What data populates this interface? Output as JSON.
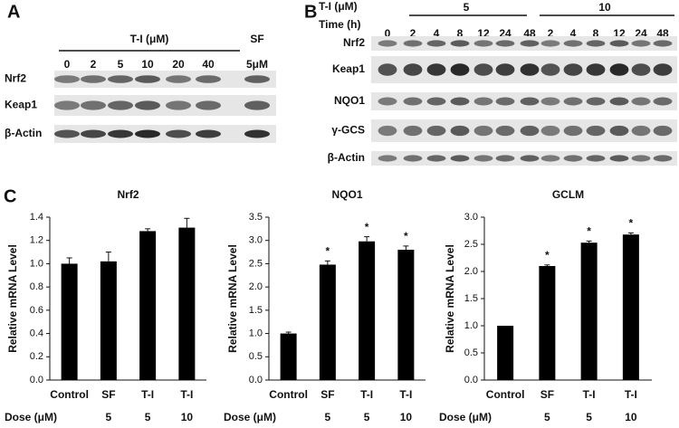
{
  "panel_a": {
    "label": "A",
    "header": "T-I (μM)",
    "sf_header": "SF",
    "doses": [
      "0",
      "2",
      "5",
      "10",
      "20",
      "40"
    ],
    "sf_dose": "5μM",
    "rows": [
      "Nrf2",
      "Keap1",
      "β-Actin"
    ]
  },
  "panel_b": {
    "label": "B",
    "ti_label": "T-I (μM)",
    "time_label": "Time (h)",
    "groups": [
      "5",
      "10"
    ],
    "times": [
      "0",
      "2",
      "4",
      "8",
      "12",
      "24",
      "48",
      "2",
      "4",
      "8",
      "12",
      "24",
      "48"
    ],
    "rows": [
      "Nrf2",
      "Keap1",
      "NQO1",
      "γ-GCS",
      "β-Actin"
    ]
  },
  "panel_c": {
    "label": "C"
  },
  "chart_data": [
    {
      "type": "bar",
      "title": "Nrf2",
      "y_label": "Relative mRNA Level",
      "color": "#000000",
      "categories": [
        "Control",
        "SF",
        "T-I",
        "T-I"
      ],
      "dose_label": "Dose (μM)",
      "doses": [
        null,
        "5",
        "5",
        "10"
      ],
      "values": [
        1.0,
        1.02,
        1.28,
        1.31
      ],
      "errors": [
        0.05,
        0.08,
        0.02,
        0.08
      ],
      "annotations": [
        null,
        null,
        null,
        null
      ],
      "ylim": [
        0,
        1.4
      ],
      "yticks": [
        {
          "value": 0,
          "label": "0.0"
        },
        {
          "value": 0.2,
          "label": "0.2"
        },
        {
          "value": 0.4,
          "label": "0.4"
        },
        {
          "value": 0.6,
          "label": "0.6"
        },
        {
          "value": 0.8,
          "label": "0.8"
        },
        {
          "value": 1,
          "label": "1.0"
        },
        {
          "value": 1.2,
          "label": "1.2"
        },
        {
          "value": 1.4,
          "label": "1.4"
        }
      ]
    },
    {
      "type": "bar",
      "title": "NQO1",
      "y_label": "Relative mRNA Level",
      "color": "#000000",
      "categories": [
        "Control",
        "SF",
        "T-I",
        "T-I"
      ],
      "dose_label": "Dose (μM)",
      "doses": [
        null,
        "5",
        "5",
        "10"
      ],
      "values": [
        1.0,
        2.48,
        2.98,
        2.8
      ],
      "errors": [
        0.03,
        0.08,
        0.1,
        0.08
      ],
      "annotations": [
        null,
        "*",
        "*",
        "*"
      ],
      "ylim": [
        0,
        3.5
      ],
      "yticks": [
        {
          "value": 0,
          "label": "0.0"
        },
        {
          "value": 0.5,
          "label": "0.5"
        },
        {
          "value": 1,
          "label": "1.0"
        },
        {
          "value": 1.5,
          "label": "1.5"
        },
        {
          "value": 2,
          "label": "2.0"
        },
        {
          "value": 2.5,
          "label": "2.5"
        },
        {
          "value": 3,
          "label": "3.0"
        },
        {
          "value": 3.5,
          "label": "3.5"
        }
      ]
    },
    {
      "type": "bar",
      "title": "GCLM",
      "y_label": "Relative mRNA Level",
      "color": "#000000",
      "categories": [
        "Control",
        "SF",
        "T-I",
        "T-I"
      ],
      "dose_label": "Dose (μM)",
      "doses": [
        null,
        "5",
        "5",
        "10"
      ],
      "values": [
        1.0,
        2.1,
        2.53,
        2.68
      ],
      "errors": [
        0,
        0.02,
        0.03,
        0.03
      ],
      "annotations": [
        null,
        "*",
        "*",
        "*"
      ],
      "ylim": [
        0,
        3.0
      ],
      "yticks": [
        {
          "value": 0,
          "label": "0.0"
        },
        {
          "value": 0.5,
          "label": "0.5"
        },
        {
          "value": 1,
          "label": "1.0"
        },
        {
          "value": 1.5,
          "label": "1.5"
        },
        {
          "value": 2,
          "label": "2.0"
        },
        {
          "value": 2.5,
          "label": "2.5"
        },
        {
          "value": 3,
          "label": "3.0"
        }
      ]
    }
  ]
}
